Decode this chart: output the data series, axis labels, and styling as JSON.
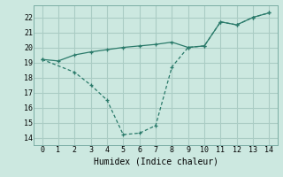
{
  "line1_x": [
    0,
    1,
    2,
    3,
    4,
    5,
    6,
    7,
    8,
    9,
    10,
    11,
    12,
    13,
    14
  ],
  "line1_y": [
    19.2,
    19.1,
    19.5,
    19.7,
    19.85,
    20.0,
    20.1,
    20.2,
    20.35,
    20.0,
    20.1,
    21.7,
    21.5,
    22.0,
    22.3
  ],
  "line2_x": [
    0,
    2,
    3,
    4,
    5,
    6,
    7,
    8,
    9,
    10,
    11,
    12,
    13,
    14
  ],
  "line2_y": [
    19.2,
    18.35,
    17.5,
    16.5,
    14.2,
    14.3,
    14.8,
    18.7,
    20.0,
    20.1,
    21.7,
    21.5,
    22.0,
    22.3
  ],
  "line_color": "#2a7a6a",
  "bg_color": "#cce8e0",
  "grid_color": "#aaccc4",
  "xlabel": "Humidex (Indice chaleur)",
  "ylim": [
    13.5,
    22.8
  ],
  "xlim": [
    -0.5,
    14.5
  ],
  "yticks": [
    14,
    15,
    16,
    17,
    18,
    19,
    20,
    21,
    22
  ],
  "xticks": [
    0,
    1,
    2,
    3,
    4,
    5,
    6,
    7,
    8,
    9,
    10,
    11,
    12,
    13,
    14
  ]
}
